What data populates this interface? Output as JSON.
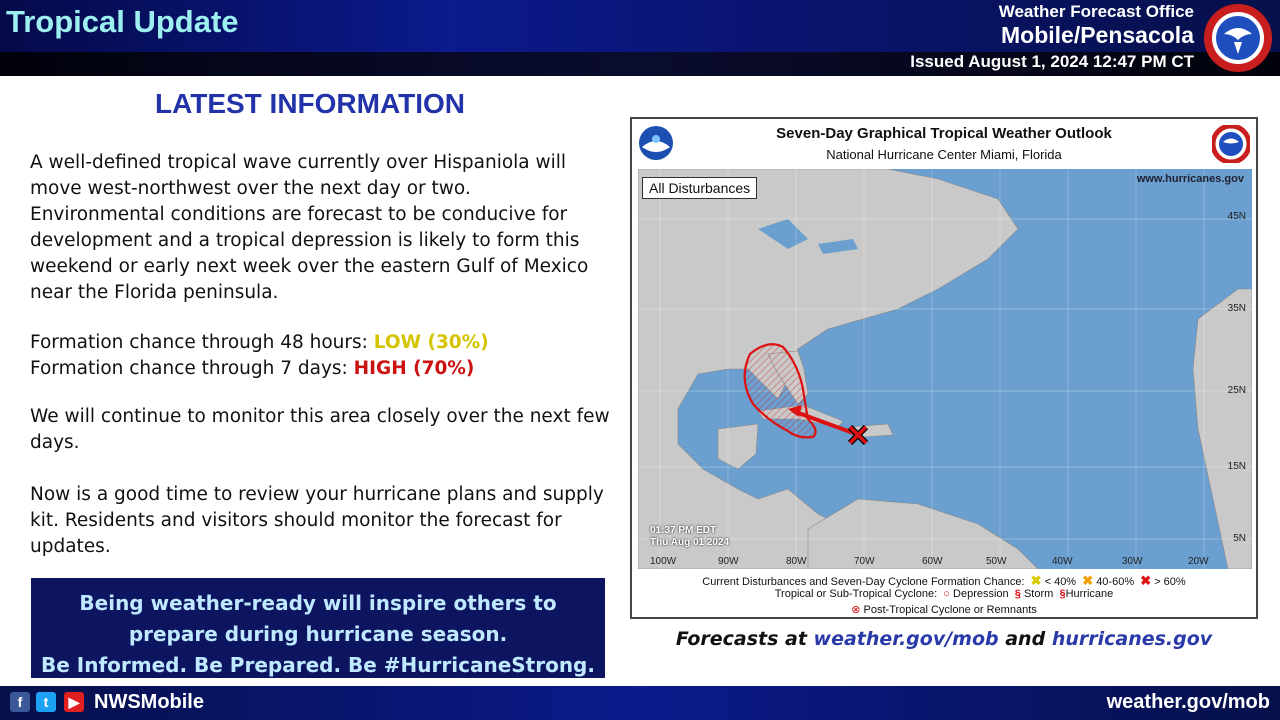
{
  "header": {
    "title": "Tropical Update",
    "office_line1": "Weather Forecast Office",
    "office_line2": "Mobile/Pensacola",
    "issued": "Issued August 1, 2024 12:47 PM CT"
  },
  "info": {
    "title": "LATEST INFORMATION",
    "paragraph1": "A well-defined tropical wave currently over Hispaniola will move west-northwest over the next day or two. Environmental conditions are forecast to be conducive for development and a tropical depression is likely to form this weekend or early next week over the eastern Gulf of Mexico near the Florida peninsula.",
    "chance48_label": "Formation chance through 48 hours: ",
    "chance48_value": "LOW (30%)",
    "chance7_label": "Formation chance through 7 days: ",
    "chance7_value": "HIGH (70%)",
    "paragraph3": "We will continue to monitor this area closely over the next few days.",
    "paragraph4": "Now is a good time to review your hurricane plans and supply kit. Residents and visitors should monitor the forecast for updates."
  },
  "ready_box": {
    "line1": "Being weather-ready will inspire others to",
    "line2": "prepare during hurricane season.",
    "line3": "Be Informed. Be Prepared. Be #HurricaneStrong."
  },
  "map": {
    "title": "Seven-Day Graphical Tropical Weather Outlook",
    "subtitle": "National Hurricane Center  Miami, Florida",
    "filter_label": "All Disturbances",
    "url": "www.hurricanes.gov",
    "time_line1": "01:37 PM EDT",
    "time_line2": "Thu Aug 01 2024",
    "lon_labels": [
      "100W",
      "90W",
      "80W",
      "70W",
      "60W",
      "50W",
      "40W",
      "30W",
      "20W"
    ],
    "lat_labels": [
      "45N",
      "35N",
      "25N",
      "15N",
      "5N"
    ],
    "legend_row1_label": "Current Disturbances and Seven-Day Cyclone Formation Chance:",
    "legend_low": "< 40%",
    "legend_mid": "40-60%",
    "legend_high": "> 60%",
    "legend_row2_label": "Tropical or Sub-Tropical Cyclone:",
    "legend_depression": "Depression",
    "legend_storm": "Storm",
    "legend_hurricane": "Hurricane",
    "legend_post": "Post-Tropical Cyclone or Remnants",
    "colors": {
      "ocean": "#6a9fcf",
      "land": "#c9c9c9",
      "low": "#e8e000",
      "mid": "#f0a000",
      "high": "#dd1111"
    }
  },
  "forecasts": {
    "prefix": "Forecasts at ",
    "link1": "weather.gov/mob",
    "middle": " and ",
    "link2": "hurricanes.gov"
  },
  "footer": {
    "handle": "NWSMobile",
    "url": "weather.gov/mob",
    "icons": [
      "facebook-icon",
      "twitter-icon",
      "youtube-icon"
    ]
  }
}
